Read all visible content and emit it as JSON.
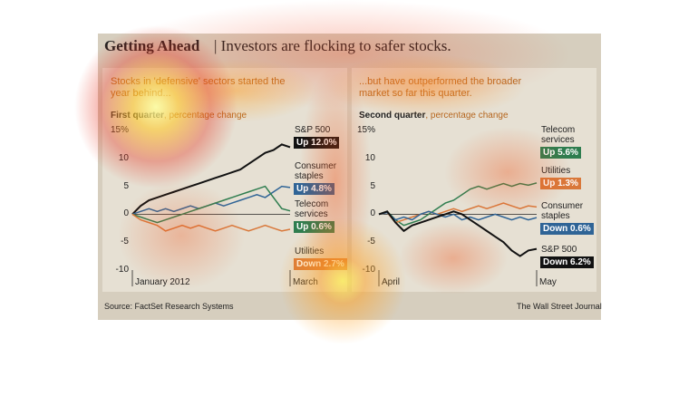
{
  "header": {
    "title": "Getting Ahead",
    "subtitle": "| Investors are flocking to safer stocks."
  },
  "chart_data": [
    {
      "type": "line",
      "title": "Stocks in 'defensive' sectors started the year behind...",
      "period": "First quarter",
      "measure": ", percentage change",
      "categories": [
        "January 2012",
        null,
        null,
        null,
        null,
        null,
        null,
        null,
        null,
        null,
        null,
        null,
        null,
        null,
        null,
        null,
        null,
        null,
        null,
        "March"
      ],
      "ylim": [
        -10,
        15
      ],
      "yticks": [
        {
          "value": 15,
          "label": "15%"
        },
        10,
        5,
        0,
        -5,
        -10
      ],
      "series": [
        {
          "name": "S&P 500",
          "color": "#111111",
          "label": "Up 12.0%",
          "values": [
            0,
            1.5,
            2.5,
            3,
            3.5,
            4,
            4.5,
            5,
            5.5,
            6,
            6.5,
            7,
            7.5,
            8,
            9,
            10,
            11,
            11.5,
            12.5,
            12.0
          ]
        },
        {
          "name": "Consumer staples",
          "color": "#2f6496",
          "label": "Up 4.8%",
          "values": [
            0,
            0.5,
            1,
            0.5,
            1,
            0.5,
            1,
            1.5,
            1,
            1.5,
            2,
            1.5,
            2,
            2.5,
            3,
            3.5,
            3,
            4,
            5,
            4.8
          ]
        },
        {
          "name": "Telecom services",
          "color": "#2e7d4f",
          "label": "Up 0.6%",
          "values": [
            0,
            -0.5,
            -1,
            -1.5,
            -1,
            -0.5,
            0,
            0.5,
            1,
            1.5,
            2,
            2.5,
            3,
            3.5,
            4,
            4.5,
            5,
            3,
            1,
            0.6
          ]
        },
        {
          "name": "Utilities",
          "color": "#d9783a",
          "label": "Down 2.7%",
          "values": [
            0,
            -1,
            -1.5,
            -2,
            -3,
            -2.5,
            -2,
            -2.5,
            -2,
            -2.5,
            -3,
            -2.5,
            -2,
            -2.5,
            -3,
            -2.5,
            -2,
            -2.5,
            -3,
            -2.7
          ]
        }
      ]
    },
    {
      "type": "line",
      "title": "...but have outperformed the broader market so far this quarter.",
      "period": "Second quarter",
      "measure": ", percentage change",
      "categories": [
        "April",
        null,
        null,
        null,
        null,
        null,
        null,
        null,
        null,
        null,
        null,
        null,
        null,
        null,
        null,
        null,
        null,
        null,
        null,
        "May"
      ],
      "ylim": [
        -10,
        15
      ],
      "yticks": [
        {
          "value": 15,
          "label": "15%"
        },
        10,
        5,
        0,
        -5,
        -10
      ],
      "series": [
        {
          "name": "Telecom services",
          "color": "#2e7d4f",
          "label": "Up 5.6%",
          "values": [
            0,
            0.5,
            -1,
            -2,
            -1.5,
            -1,
            0,
            1,
            2,
            2.5,
            3.5,
            4.5,
            5,
            4.5,
            5,
            5.5,
            5,
            5.5,
            5.2,
            5.6
          ]
        },
        {
          "name": "Utilities",
          "color": "#d9783a",
          "label": "Up 1.3%",
          "values": [
            0,
            0.3,
            -1.5,
            -1,
            -0.5,
            0,
            0.5,
            0,
            0.5,
            1,
            0.5,
            1,
            1.5,
            1,
            1.5,
            2,
            1.5,
            1,
            1.5,
            1.3
          ]
        },
        {
          "name": "Consumer staples",
          "color": "#2f6496",
          "label": "Down 0.6%",
          "values": [
            0,
            0.3,
            -1,
            -0.5,
            -1,
            0,
            0.5,
            0,
            -0.5,
            0,
            -1,
            -0.5,
            -1,
            -0.5,
            0,
            -0.5,
            -1,
            -0.5,
            -1,
            -0.6
          ]
        },
        {
          "name": "S&P 500",
          "color": "#111111",
          "label": "Down 6.2%",
          "values": [
            0,
            0.5,
            -1.5,
            -3,
            -2,
            -1.5,
            -1,
            -0.5,
            0,
            0.5,
            0,
            -1,
            -2,
            -3,
            -4,
            -5,
            -6.5,
            -7.5,
            -6.5,
            -6.2
          ]
        }
      ]
    }
  ],
  "footer": {
    "source": "Source: FactSet Research Systems",
    "credit": "The Wall Street Journal"
  }
}
